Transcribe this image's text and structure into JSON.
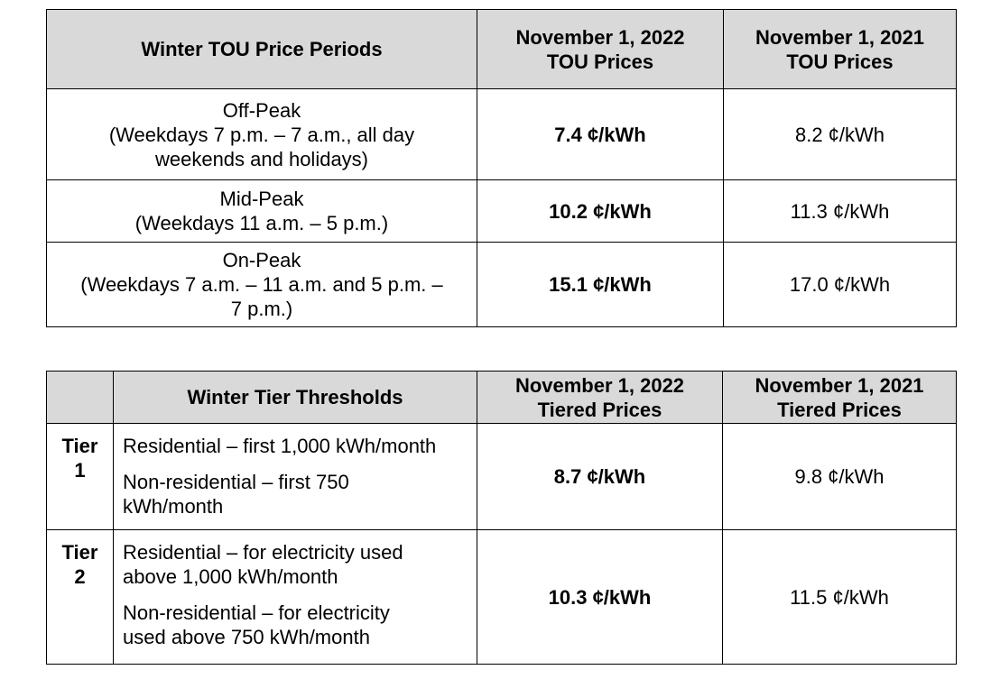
{
  "tou_table": {
    "headers": {
      "period": "Winter TOU Price Periods",
      "col_2022": [
        "November 1, 2022",
        "TOU Prices"
      ],
      "col_2021": [
        "November 1, 2021",
        "TOU Prices"
      ]
    },
    "rows": [
      {
        "lines": [
          "Off-Peak",
          "(Weekdays 7 p.m. – 7 a.m., all day",
          "weekends and holidays)"
        ],
        "price_2022": "7.4 ¢/kWh",
        "price_2021": "8.2 ¢/kWh"
      },
      {
        "lines": [
          "Mid-Peak",
          "(Weekdays 11 a.m. – 5 p.m.)"
        ],
        "price_2022": "10.2 ¢/kWh",
        "price_2021": "11.3 ¢/kWh"
      },
      {
        "lines": [
          "On-Peak",
          "(Weekdays 7 a.m. – 11 a.m. and 5 p.m. –",
          "7 p.m.)"
        ],
        "price_2022": "15.1 ¢/kWh",
        "price_2021": "17.0 ¢/kWh"
      }
    ]
  },
  "tier_table": {
    "headers": {
      "thresholds": "Winter Tier Thresholds",
      "col_2022": [
        "November 1, 2022",
        "Tiered Prices"
      ],
      "col_2021": [
        "November 1, 2021",
        "Tiered Prices"
      ]
    },
    "rows": [
      {
        "tier": [
          "Tier",
          "1"
        ],
        "residential": [
          "Residential – first 1,000 kWh/month"
        ],
        "non_residential": [
          "Non-residential – first 750",
          "kWh/month"
        ],
        "price_2022": "8.7 ¢/kWh",
        "price_2021": "9.8 ¢/kWh"
      },
      {
        "tier": [
          "Tier",
          "2"
        ],
        "residential": [
          "Residential – for electricity used",
          "above 1,000 kWh/month"
        ],
        "non_residential": [
          "Non-residential – for electricity",
          "used above 750 kWh/month"
        ],
        "price_2022": "10.3 ¢/kWh",
        "price_2021": "11.5 ¢/kWh"
      }
    ]
  }
}
